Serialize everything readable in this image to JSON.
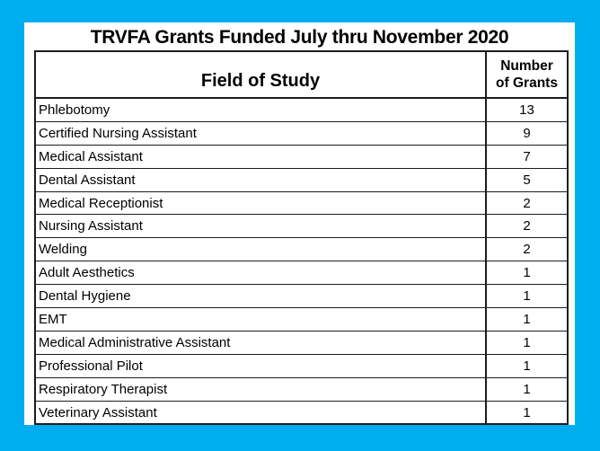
{
  "colors": {
    "frame_background": "#00AEEF",
    "panel_background": "#FFFFFF",
    "table_border": "#1C1C1C",
    "text": "#000000"
  },
  "title": "TRVFA Grants Funded July thru November 2020",
  "table": {
    "field_header": "Field of Study",
    "count_header": [
      "Number",
      "of Grants"
    ],
    "rows": [
      {
        "field": "Phlebotomy",
        "count": "13"
      },
      {
        "field": "Certified Nursing Assistant",
        "count": "9"
      },
      {
        "field": "Medical Assistant",
        "count": "7"
      },
      {
        "field": "Dental Assistant",
        "count": "5"
      },
      {
        "field": "Medical Receptionist",
        "count": "2"
      },
      {
        "field": "Nursing Assistant",
        "count": "2"
      },
      {
        "field": "Welding",
        "count": "2"
      },
      {
        "field": "Adult Aesthetics",
        "count": "1"
      },
      {
        "field": "Dental Hygiene",
        "count": "1"
      },
      {
        "field": "EMT",
        "count": "1"
      },
      {
        "field": "Medical Administrative Assistant",
        "count": "1"
      },
      {
        "field": "Professional Pilot",
        "count": "1"
      },
      {
        "field": "Respiratory Therapist",
        "count": "1"
      },
      {
        "field": "Veterinary Assistant",
        "count": "1"
      }
    ]
  },
  "chart_data": {
    "type": "table",
    "title": "TRVFA Grants Funded July thru November 2020",
    "columns": [
      "Field of Study",
      "Number of Grants"
    ],
    "rows": [
      [
        "Phlebotomy",
        13
      ],
      [
        "Certified Nursing Assistant",
        9
      ],
      [
        "Medical Assistant",
        7
      ],
      [
        "Dental Assistant",
        5
      ],
      [
        "Medical Receptionist",
        2
      ],
      [
        "Nursing Assistant",
        2
      ],
      [
        "Welding",
        2
      ],
      [
        "Adult Aesthetics",
        1
      ],
      [
        "Dental Hygiene",
        1
      ],
      [
        "EMT",
        1
      ],
      [
        "Medical Administrative Assistant",
        1
      ],
      [
        "Professional Pilot",
        1
      ],
      [
        "Respiratory Therapist",
        1
      ],
      [
        "Veterinary Assistant",
        1
      ]
    ]
  }
}
